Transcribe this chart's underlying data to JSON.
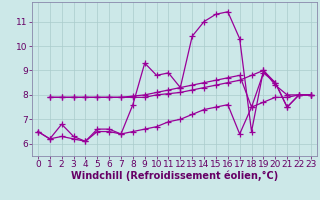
{
  "background_color": "#cce8e8",
  "line_color": "#990099",
  "grid_color": "#aacccc",
  "xlabel": "Windchill (Refroidissement éolien,°C)",
  "xlim": [
    -0.5,
    23.5
  ],
  "ylim": [
    5.5,
    11.8
  ],
  "yticks": [
    6,
    7,
    8,
    9,
    10,
    11
  ],
  "xticks": [
    0,
    1,
    2,
    3,
    4,
    5,
    6,
    7,
    8,
    9,
    10,
    11,
    12,
    13,
    14,
    15,
    16,
    17,
    18,
    19,
    20,
    21,
    22,
    23
  ],
  "series": [
    {
      "x": [
        0,
        1,
        2,
        3,
        4,
        5,
        6,
        7,
        8,
        9,
        10,
        11,
        12,
        13,
        14,
        15,
        16,
        17,
        18,
        19,
        20,
        21,
        22,
        23
      ],
      "y": [
        6.5,
        6.2,
        6.3,
        6.2,
        6.1,
        6.5,
        6.5,
        6.4,
        6.5,
        6.6,
        6.7,
        6.9,
        7.0,
        7.2,
        7.4,
        7.5,
        7.6,
        6.4,
        7.5,
        7.7,
        7.9,
        7.9,
        8.0,
        8.0
      ]
    },
    {
      "x": [
        0,
        1,
        2,
        3,
        4,
        5,
        6,
        7,
        8,
        9,
        10,
        11,
        12,
        13,
        14,
        15,
        16,
        17,
        18,
        19,
        20,
        21,
        22,
        23
      ],
      "y": [
        6.5,
        6.2,
        6.8,
        6.3,
        6.1,
        6.6,
        6.6,
        6.4,
        7.6,
        9.3,
        8.8,
        8.9,
        8.3,
        10.4,
        11.0,
        11.3,
        11.4,
        10.3,
        6.5,
        9.0,
        8.5,
        7.5,
        8.0,
        8.0
      ]
    },
    {
      "x": [
        1,
        2,
        3,
        4,
        5,
        6,
        7,
        8,
        9,
        10,
        11,
        12,
        13,
        14,
        15,
        16,
        17,
        18,
        19,
        20,
        21,
        22,
        23
      ],
      "y": [
        7.9,
        7.9,
        7.9,
        7.9,
        7.9,
        7.9,
        7.9,
        7.95,
        8.0,
        8.1,
        8.2,
        8.3,
        8.4,
        8.5,
        8.6,
        8.7,
        8.8,
        7.5,
        8.9,
        8.5,
        7.5,
        8.0,
        8.0
      ]
    },
    {
      "x": [
        1,
        2,
        3,
        4,
        5,
        6,
        7,
        8,
        9,
        10,
        11,
        12,
        13,
        14,
        15,
        16,
        17,
        18,
        19,
        20,
        21,
        22,
        23
      ],
      "y": [
        7.9,
        7.9,
        7.9,
        7.9,
        7.9,
        7.9,
        7.9,
        7.9,
        7.9,
        8.0,
        8.05,
        8.1,
        8.2,
        8.3,
        8.4,
        8.5,
        8.6,
        8.8,
        9.0,
        8.4,
        8.0,
        8.0,
        8.0
      ]
    }
  ],
  "marker": "+",
  "markersize": 4,
  "linewidth": 0.9,
  "xlabel_fontsize": 7,
  "tick_fontsize": 6.5,
  "xlabel_color": "#660066",
  "tick_color": "#660066",
  "spine_color": "#8888aa"
}
